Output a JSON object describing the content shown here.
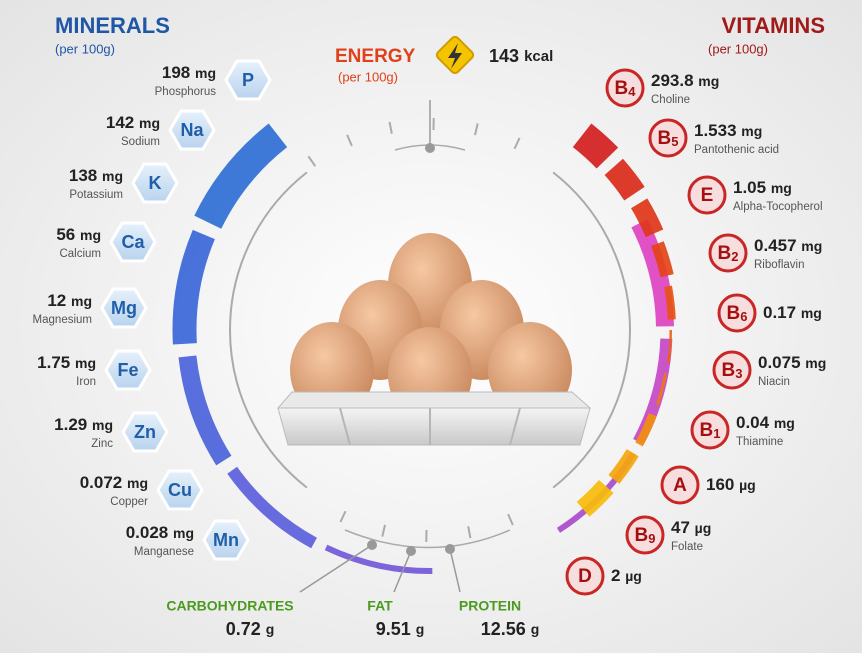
{
  "minerals": {
    "title": "MINERALS",
    "subtitle": "(per 100g)",
    "items": [
      {
        "symbol": "P",
        "name": "Phosphorus",
        "amount": 198,
        "unit": "mg"
      },
      {
        "symbol": "Na",
        "name": "Sodium",
        "amount": 142,
        "unit": "mg"
      },
      {
        "symbol": "K",
        "name": "Potassium",
        "amount": 138,
        "unit": "mg"
      },
      {
        "symbol": "Ca",
        "name": "Calcium",
        "amount": 56,
        "unit": "mg"
      },
      {
        "symbol": "Mg",
        "name": "Magnesium",
        "amount": 12,
        "unit": "mg"
      },
      {
        "symbol": "Fe",
        "name": "Iron",
        "amount": 1.75,
        "unit": "mg"
      },
      {
        "symbol": "Zn",
        "name": "Zinc",
        "amount": 1.29,
        "unit": "mg"
      },
      {
        "symbol": "Cu",
        "name": "Copper",
        "amount": 0.072,
        "unit": "mg"
      },
      {
        "symbol": "Mn",
        "name": "Manganese",
        "amount": 0.028,
        "unit": "mg"
      }
    ]
  },
  "vitamins": {
    "title": "VITAMINS",
    "subtitle": "(per 100g)",
    "items": [
      {
        "symbol": "B",
        "sub": "4",
        "name": "Choline",
        "amount": 293.8,
        "unit": "mg"
      },
      {
        "symbol": "B",
        "sub": "5",
        "name": "Pantothenic acid",
        "amount": 1.533,
        "unit": "mg"
      },
      {
        "symbol": "E",
        "name": "Alpha-Tocopherol",
        "amount": 1.05,
        "unit": "mg"
      },
      {
        "symbol": "B",
        "sub": "2",
        "name": "Riboflavin",
        "amount": 0.457,
        "unit": "mg"
      },
      {
        "symbol": "B",
        "sub": "6",
        "amount": 0.17,
        "unit": "mg"
      },
      {
        "symbol": "B",
        "sub": "3",
        "name": "Niacin",
        "amount": 0.075,
        "unit": "mg"
      },
      {
        "symbol": "B",
        "sub": "1",
        "name": "Thiamine",
        "amount": 0.04,
        "unit": "mg"
      },
      {
        "symbol": "A",
        "amount": 160,
        "unit": "µg"
      },
      {
        "symbol": "B",
        "sub": "9",
        "name": "Folate",
        "amount": 47,
        "unit": "µg"
      },
      {
        "symbol": "D",
        "amount": 2,
        "unit": "µg"
      }
    ]
  },
  "energy": {
    "title": "ENERGY",
    "subtitle": "(per 100g)",
    "amount": 143,
    "unit": "kcal"
  },
  "macros": [
    {
      "name": "CARBOHYDRATES",
      "amount": 0.72,
      "unit": "g"
    },
    {
      "name": "FAT",
      "amount": 9.51,
      "unit": "g"
    },
    {
      "name": "PROTEIN",
      "amount": 12.56,
      "unit": "g"
    }
  ]
}
